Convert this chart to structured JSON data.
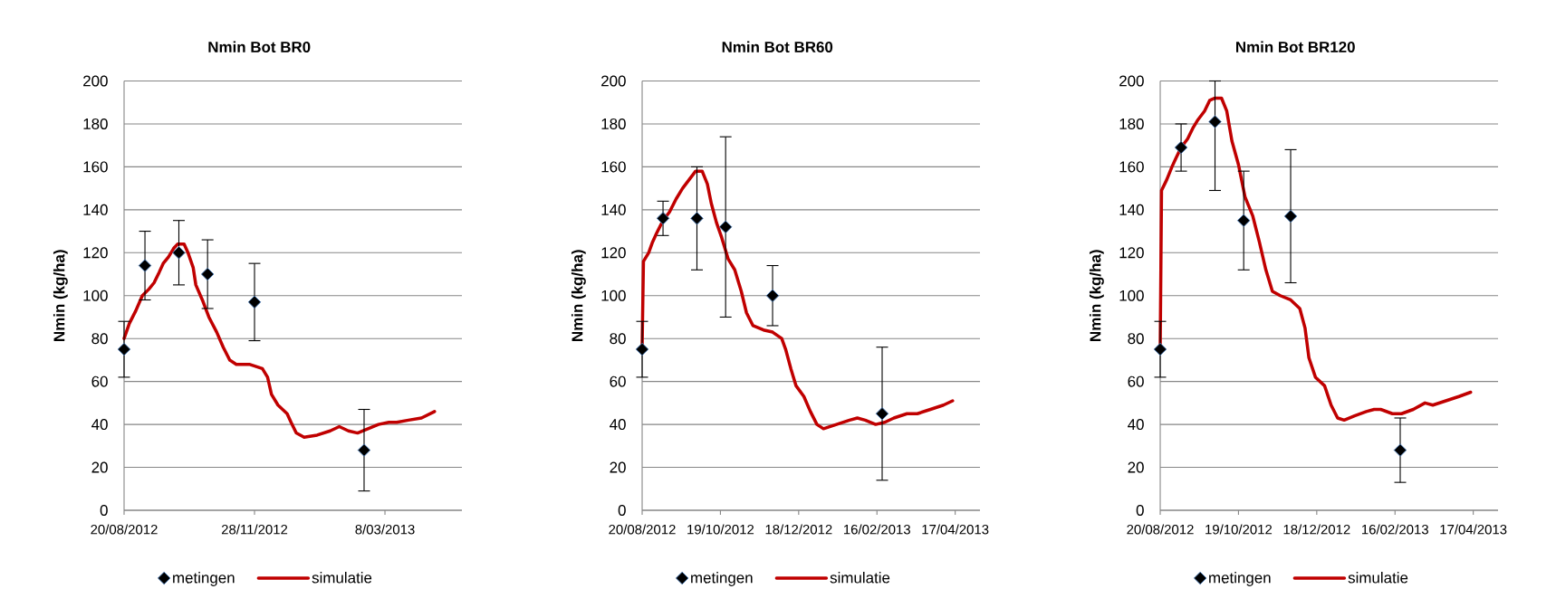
{
  "chart_data": [
    {
      "type": "line",
      "title": "Nmin Bot BR0",
      "ylabel": "Nmin (kg/ha)",
      "xlim": [
        "2012-08-20",
        "2013-05-06"
      ],
      "xticks": [
        {
          "value": "2012-08-20",
          "label": "20/08/2012"
        },
        {
          "value": "2012-11-28",
          "label": "28/11/2012"
        },
        {
          "value": "2013-03-08",
          "label": "8/03/2013"
        }
      ],
      "ylim": [
        0,
        200
      ],
      "yticks": [
        0,
        20,
        40,
        60,
        80,
        100,
        120,
        140,
        160,
        180,
        200
      ],
      "grid": "y",
      "legend": "bottom",
      "series": [
        {
          "name": "metingen",
          "type": "scatter",
          "color": "#000000",
          "marker": "diamond",
          "x": [
            "2012-08-20",
            "2012-09-05",
            "2012-10-01",
            "2012-10-23",
            "2012-11-28",
            "2013-02-20"
          ],
          "values": [
            75,
            114,
            120,
            110,
            97,
            28
          ],
          "errors": [
            13,
            16,
            15,
            16,
            18,
            19
          ]
        },
        {
          "name": "simulatie",
          "color": "#c00000",
          "marker": "none",
          "line_style": "solid",
          "x": [
            "2012-08-20",
            "2012-08-24",
            "2012-08-29",
            "2012-09-03",
            "2012-09-08",
            "2012-09-12",
            "2012-09-16",
            "2012-09-19",
            "2012-09-23",
            "2012-09-27",
            "2012-09-30",
            "2012-10-05",
            "2012-10-08",
            "2012-10-12",
            "2012-10-14",
            "2012-10-19",
            "2012-10-24",
            "2012-10-30",
            "2012-11-04",
            "2012-11-09",
            "2012-11-14",
            "2012-11-24",
            "2012-12-04",
            "2012-12-08",
            "2012-12-11",
            "2012-12-16",
            "2012-12-23",
            "2012-12-26",
            "2012-12-30",
            "2013-01-05",
            "2013-01-15",
            "2013-01-25",
            "2013-02-01",
            "2013-02-08",
            "2013-02-15",
            "2013-02-23",
            "2013-03-03",
            "2013-03-11",
            "2013-03-17",
            "2013-03-26",
            "2013-04-05",
            "2013-04-15"
          ],
          "values": [
            80,
            87,
            93,
            100,
            103,
            106,
            111,
            115,
            118,
            122,
            124,
            124,
            120,
            113,
            105,
            98,
            90,
            83,
            76,
            70,
            68,
            68,
            66,
            62,
            54,
            49,
            45,
            41,
            36,
            34,
            35,
            37,
            39,
            37,
            36,
            38,
            40,
            41,
            41,
            42,
            43,
            46
          ]
        }
      ]
    },
    {
      "type": "line",
      "title": "Nmin Bot BR60",
      "ylabel": "Nmin (kg/ha)",
      "xlim": [
        "2012-08-20",
        "2013-05-06"
      ],
      "xticks": [
        {
          "value": "2012-08-20",
          "label": "20/08/2012"
        },
        {
          "value": "2012-10-19",
          "label": "19/10/2012"
        },
        {
          "value": "2012-12-18",
          "label": "18/12/2012"
        },
        {
          "value": "2013-02-16",
          "label": "16/02/2013"
        },
        {
          "value": "2013-04-17",
          "label": "17/04/2013"
        }
      ],
      "ylim": [
        0,
        200
      ],
      "yticks": [
        0,
        20,
        40,
        60,
        80,
        100,
        120,
        140,
        160,
        180,
        200
      ],
      "grid": "y",
      "legend": "bottom",
      "series": [
        {
          "name": "metingen",
          "type": "scatter",
          "color": "#000000",
          "marker": "diamond",
          "x": [
            "2012-08-20",
            "2012-09-05",
            "2012-10-01",
            "2012-10-23",
            "2012-11-28",
            "2013-02-20"
          ],
          "values": [
            75,
            136,
            136,
            132,
            100,
            45
          ],
          "errors": [
            13,
            8,
            24,
            42,
            14,
            31
          ]
        },
        {
          "name": "simulatie",
          "color": "#c00000",
          "marker": "none",
          "line_style": "solid",
          "x": [
            "2012-08-20",
            "2012-08-21",
            "2012-08-25",
            "2012-08-28",
            "2012-08-31",
            "2012-09-05",
            "2012-09-10",
            "2012-09-15",
            "2012-09-20",
            "2012-09-25",
            "2012-09-30",
            "2012-10-05",
            "2012-10-09",
            "2012-10-12",
            "2012-10-16",
            "2012-10-20",
            "2012-10-25",
            "2012-10-30",
            "2012-11-04",
            "2012-11-08",
            "2012-11-13",
            "2012-11-21",
            "2012-11-28",
            "2012-12-05",
            "2012-12-08",
            "2012-12-12",
            "2012-12-16",
            "2012-12-22",
            "2012-12-27",
            "2013-01-01",
            "2013-01-06",
            "2013-01-16",
            "2013-01-26",
            "2013-02-01",
            "2013-02-07",
            "2013-02-15",
            "2013-02-22",
            "2013-03-01",
            "2013-03-11",
            "2013-03-19",
            "2013-03-29",
            "2013-04-08",
            "2013-04-15"
          ],
          "values": [
            76,
            116,
            120,
            125,
            129,
            135,
            139,
            145,
            150,
            154,
            158,
            158,
            152,
            143,
            134,
            127,
            117,
            112,
            102,
            92,
            86,
            84,
            83,
            80,
            75,
            66,
            58,
            53,
            46,
            40,
            38,
            40,
            42,
            43,
            42,
            40,
            41,
            43,
            45,
            45,
            47,
            49,
            51
          ]
        }
      ]
    },
    {
      "type": "line",
      "title": "Nmin Bot BR120",
      "ylabel": "Nmin (kg/ha)",
      "xlim": [
        "2012-08-20",
        "2013-05-06"
      ],
      "xticks": [
        {
          "value": "2012-08-20",
          "label": "20/08/2012"
        },
        {
          "value": "2012-10-19",
          "label": "19/10/2012"
        },
        {
          "value": "2012-12-18",
          "label": "18/12/2012"
        },
        {
          "value": "2013-02-16",
          "label": "16/02/2013"
        },
        {
          "value": "2013-04-17",
          "label": "17/04/2013"
        }
      ],
      "ylim": [
        0,
        200
      ],
      "yticks": [
        0,
        20,
        40,
        60,
        80,
        100,
        120,
        140,
        160,
        180,
        200
      ],
      "grid": "y",
      "legend": "bottom",
      "series": [
        {
          "name": "metingen",
          "type": "scatter",
          "color": "#000000",
          "marker": "diamond",
          "x": [
            "2012-08-20",
            "2012-09-05",
            "2012-10-01",
            "2012-10-23",
            "2012-11-28",
            "2013-02-20"
          ],
          "values": [
            75,
            169,
            181,
            135,
            137,
            28
          ],
          "errors": [
            13,
            11,
            [
              149,
              200
            ],
            23,
            31,
            15
          ]
        },
        {
          "name": "simulatie",
          "color": "#c00000",
          "marker": "none",
          "line_style": "solid",
          "x": [
            "2012-08-20",
            "2012-08-21",
            "2012-08-25",
            "2012-08-29",
            "2012-09-01",
            "2012-09-05",
            "2012-09-10",
            "2012-09-14",
            "2012-09-18",
            "2012-09-23",
            "2012-09-27",
            "2012-10-01",
            "2012-10-06",
            "2012-10-10",
            "2012-10-14",
            "2012-10-19",
            "2012-10-24",
            "2012-10-30",
            "2012-11-04",
            "2012-11-09",
            "2012-11-14",
            "2012-11-20",
            "2012-11-28",
            "2012-12-05",
            "2012-12-09",
            "2012-12-12",
            "2012-12-17",
            "2012-12-24",
            "2012-12-29",
            "2013-01-03",
            "2013-01-08",
            "2013-01-16",
            "2013-01-25",
            "2013-01-31",
            "2013-02-05",
            "2013-02-14",
            "2013-02-21",
            "2013-03-02",
            "2013-03-11",
            "2013-03-17",
            "2013-03-27",
            "2013-04-06",
            "2013-04-15"
          ],
          "values": [
            76,
            149,
            154,
            160,
            164,
            169,
            173,
            178,
            182,
            186,
            191,
            192,
            192,
            186,
            172,
            161,
            146,
            137,
            125,
            112,
            102,
            100,
            98,
            94,
            85,
            71,
            62,
            58,
            49,
            43,
            42,
            44,
            46,
            47,
            47,
            45,
            45,
            47,
            50,
            49,
            51,
            53,
            55
          ]
        }
      ]
    }
  ]
}
